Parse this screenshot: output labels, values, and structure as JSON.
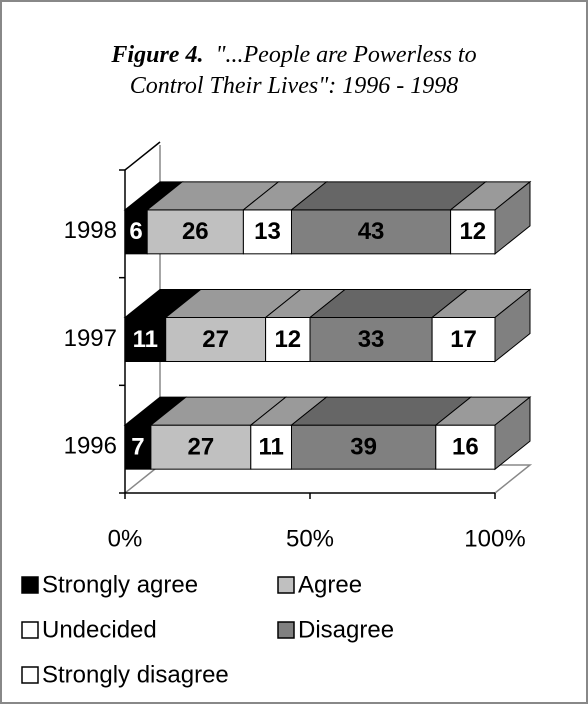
{
  "chart_data": {
    "type": "bar3d_stacked_horizontal",
    "title_label": "Figure 4.",
    "title": "\"...People are Powerless to Control Their Lives\":  1996 - 1998",
    "categories": [
      "1996",
      "1997",
      "1998"
    ],
    "series": [
      {
        "name": "Strongly agree",
        "color": "#000000",
        "values": [
          7,
          11,
          6
        ]
      },
      {
        "name": "Agree",
        "color": "#c0c0c0",
        "values": [
          27,
          27,
          26
        ]
      },
      {
        "name": "Undecided",
        "color": "#ffffff",
        "values": [
          11,
          12,
          13
        ]
      },
      {
        "name": "Disagree",
        "color": "#808080",
        "values": [
          39,
          33,
          43
        ]
      },
      {
        "name": "Strongly disagree",
        "color": "#ffffff",
        "values": [
          16,
          17,
          12
        ]
      }
    ],
    "xlim": [
      0,
      100
    ],
    "xticks": [
      {
        "value": 0,
        "label": "0%"
      },
      {
        "value": 50,
        "label": "50%"
      },
      {
        "value": 100,
        "label": "100%"
      }
    ],
    "legend": "bottom"
  }
}
